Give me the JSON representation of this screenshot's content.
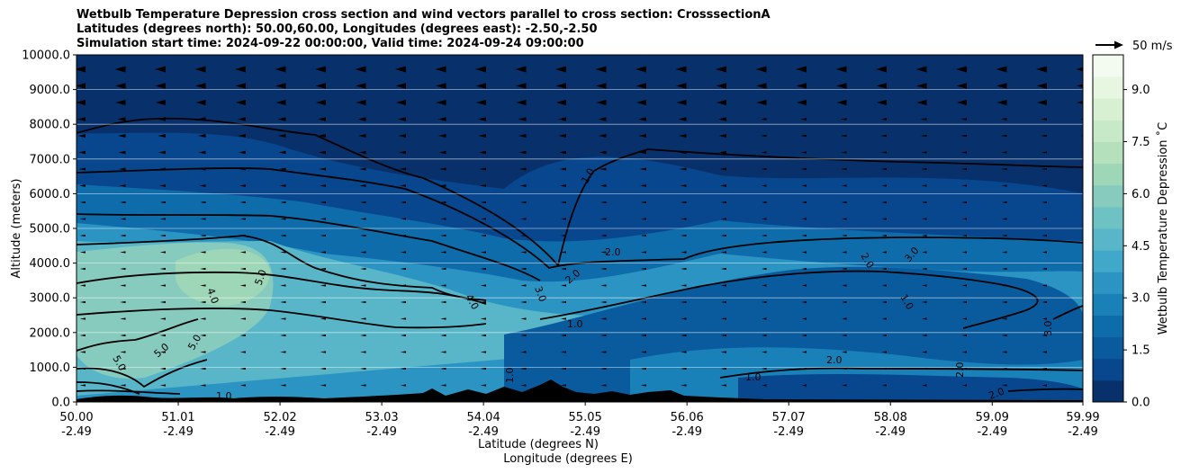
{
  "title_lines": [
    "Wetbulb Temperature Depression cross section and wind vectors parallel to cross section: CrosssectionA",
    "Latitudes (degrees north): 50.00,60.00, Longitudes (degrees east): -2.50,-2.50",
    "Simulation start time: 2024-09-22 00:00:00, Valid time: 2024-09-24 09:00:00"
  ],
  "quiver_key_label": "50 m/s",
  "chart_data": {
    "type": "heatmap",
    "title": "Wetbulb Temperature Depression cross section and wind vectors parallel to cross section: CrosssectionA",
    "ylabel": "Altitude (meters)",
    "xlabel_lines": [
      "Latitude (degrees N)",
      "Longitude (degrees E)"
    ],
    "xlim": [
      50.0,
      59.99
    ],
    "ylim": [
      0,
      10000
    ],
    "grid": "horizontal",
    "x_ticks": [
      {
        "lat": "50.00",
        "lon": "-2.49"
      },
      {
        "lat": "51.01",
        "lon": "-2.49"
      },
      {
        "lat": "52.02",
        "lon": "-2.49"
      },
      {
        "lat": "53.03",
        "lon": "-2.49"
      },
      {
        "lat": "54.04",
        "lon": "-2.49"
      },
      {
        "lat": "55.05",
        "lon": "-2.49"
      },
      {
        "lat": "56.06",
        "lon": "-2.49"
      },
      {
        "lat": "57.07",
        "lon": "-2.49"
      },
      {
        "lat": "58.08",
        "lon": "-2.49"
      },
      {
        "lat": "59.09",
        "lon": "-2.49"
      },
      {
        "lat": "59.99",
        "lon": "-2.49"
      }
    ],
    "y_ticks": [
      "0.0",
      "1000.0",
      "2000.0",
      "3000.0",
      "4000.0",
      "5000.0",
      "6000.0",
      "7000.0",
      "8000.0",
      "9000.0",
      "10000.0"
    ],
    "colorbar": {
      "label": "Wetbulb Temperature Depression ˚C",
      "range": [
        0,
        10
      ],
      "ticks": [
        "0.0",
        "1.5",
        "3.0",
        "4.5",
        "6.0",
        "7.5",
        "9.0"
      ],
      "levels": [
        "#08306b",
        "#08468d",
        "#0a5a9e",
        "#0f6cab",
        "#1a80b8",
        "#2b94c2",
        "#41a8c9",
        "#58b6c8",
        "#6fc2c3",
        "#86cbbd",
        "#9ed6b8",
        "#b5e0bc",
        "#c8e9c8",
        "#d8f0d2",
        "#e7f6e0",
        "#f3faef"
      ]
    },
    "contour_labels": [
      "1.0",
      "2.0",
      "3.0",
      "4.0",
      "5.0"
    ],
    "quiver_key": {
      "speed": 50,
      "units": "m/s"
    }
  }
}
